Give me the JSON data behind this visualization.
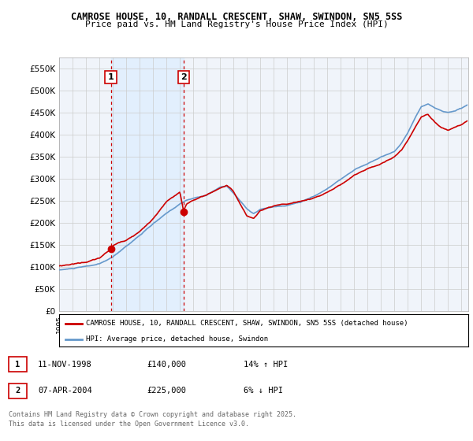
{
  "title": "CAMROSE HOUSE, 10, RANDALL CRESCENT, SHAW, SWINDON, SN5 5SS",
  "subtitle": "Price paid vs. HM Land Registry's House Price Index (HPI)",
  "ylim": [
    0,
    575000
  ],
  "yticks": [
    0,
    50000,
    100000,
    150000,
    200000,
    250000,
    300000,
    350000,
    400000,
    450000,
    500000,
    550000
  ],
  "ytick_labels": [
    "£0",
    "£50K",
    "£100K",
    "£150K",
    "£200K",
    "£250K",
    "£300K",
    "£350K",
    "£400K",
    "£450K",
    "£500K",
    "£550K"
  ],
  "xlim_start": 1995.0,
  "xlim_end": 2025.5,
  "transaction1_x": 1998.86,
  "transaction1_y": 140000,
  "transaction1_label": "1",
  "transaction1_date": "11-NOV-1998",
  "transaction1_price": "£140,000",
  "transaction1_hpi": "14% ↑ HPI",
  "transaction2_x": 2004.27,
  "transaction2_y": 225000,
  "transaction2_label": "2",
  "transaction2_date": "07-APR-2004",
  "transaction2_price": "£225,000",
  "transaction2_hpi": "6% ↓ HPI",
  "legend_label_red": "CAMROSE HOUSE, 10, RANDALL CRESCENT, SHAW, SWINDON, SN5 5SS (detached house)",
  "legend_label_blue": "HPI: Average price, detached house, Swindon",
  "footer": "Contains HM Land Registry data © Crown copyright and database right 2025.\nThis data is licensed under the Open Government Licence v3.0.",
  "red_color": "#cc0000",
  "blue_color": "#6699cc",
  "blue_fill_color": "#ddeeff",
  "grid_color": "#cccccc",
  "background_color": "#ffffff",
  "vline_color": "#cc0000",
  "chart_bg": "#f0f4fa"
}
